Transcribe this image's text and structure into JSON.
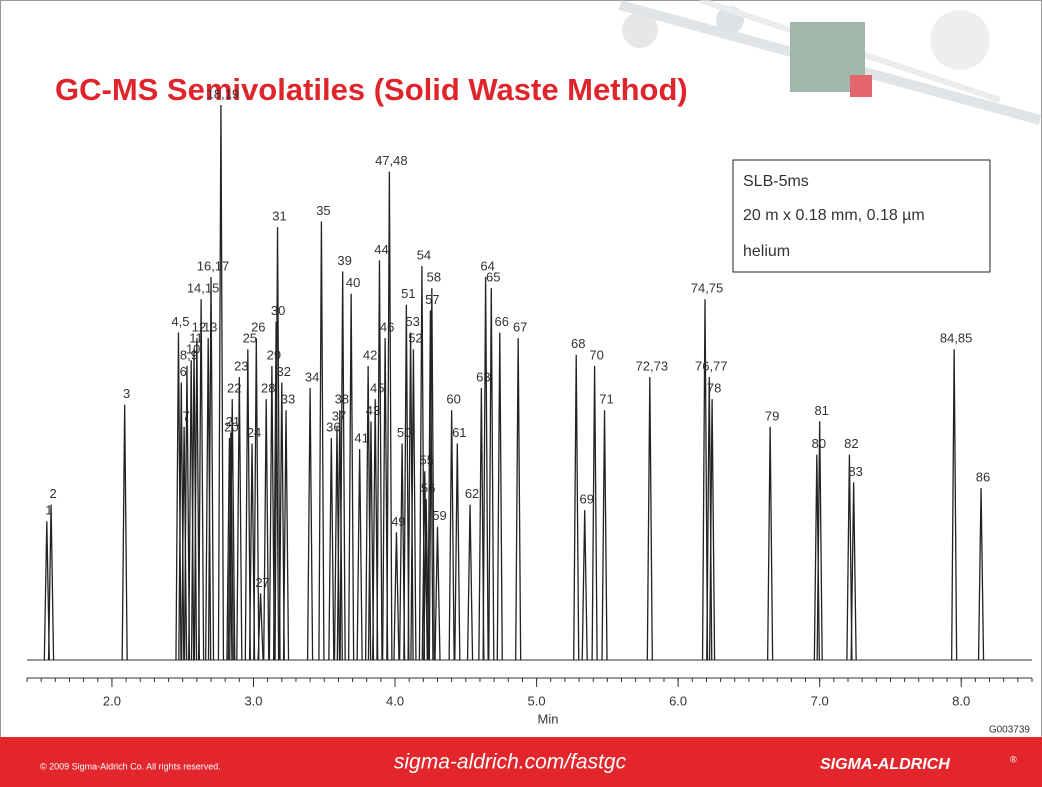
{
  "chart_data": {
    "type": "chromatogram",
    "title": "GC-MS Semivolatiles (Solid Waste Method)",
    "annotations": [
      "SLB-5ms",
      "20 m x 0.18 mm, 0.18 µm",
      "helium"
    ],
    "x_label": "Min",
    "figure_id": "G003739",
    "color": "#222222",
    "xlim": [
      1.4,
      8.5
    ],
    "xticks": [
      {
        "value": 2,
        "label": "2.0"
      },
      {
        "value": 3,
        "label": "3.0"
      },
      {
        "value": 4,
        "label": "4.0"
      },
      {
        "value": 5,
        "label": "5.0"
      },
      {
        "value": 6,
        "label": "6.0"
      },
      {
        "value": 7,
        "label": "7.0"
      },
      {
        "value": 8,
        "label": "8.0"
      }
    ],
    "categories": [
      "1",
      "2",
      "3",
      "4,5",
      "6",
      "7",
      "8,9",
      "10",
      "11",
      "12",
      "13",
      "14,15",
      "16,17",
      "18,19",
      "20",
      "21",
      "22",
      "23",
      "24",
      "25",
      "26",
      "27",
      "28",
      "29",
      "30",
      "31",
      "32",
      "33",
      "34",
      "35",
      "36",
      "37",
      "38",
      "39",
      "40",
      "41",
      "42",
      "43",
      "44",
      "45",
      "46",
      "47,48",
      "49",
      "50",
      "51",
      "52",
      "53",
      "54",
      "55",
      "56",
      "57",
      "58",
      "59",
      "60",
      "61",
      "62",
      "63",
      "64",
      "65",
      "66",
      "67",
      "68",
      "69",
      "70",
      "71",
      "72,73",
      "74,75",
      "76,77",
      "78",
      "79",
      "80",
      "81",
      "82",
      "83",
      "84,85",
      "86"
    ],
    "x": [
      1.54,
      1.57,
      2.09,
      2.47,
      2.49,
      2.51,
      2.53,
      2.56,
      2.58,
      2.6,
      2.68,
      2.63,
      2.7,
      2.77,
      2.83,
      2.84,
      2.85,
      2.9,
      2.99,
      2.96,
      3.02,
      3.05,
      3.09,
      3.13,
      3.16,
      3.17,
      3.2,
      3.23,
      3.4,
      3.48,
      3.55,
      3.59,
      3.61,
      3.63,
      3.69,
      3.75,
      3.81,
      3.83,
      3.89,
      3.86,
      3.93,
      3.96,
      4.01,
      4.05,
      4.08,
      4.13,
      4.11,
      4.19,
      4.21,
      4.22,
      4.25,
      4.26,
      4.3,
      4.4,
      4.44,
      4.53,
      4.61,
      4.64,
      4.68,
      4.74,
      4.87,
      5.28,
      5.34,
      5.41,
      5.48,
      5.8,
      6.19,
      6.22,
      6.24,
      6.65,
      6.98,
      7.0,
      7.21,
      7.24,
      7.95,
      8.14
    ],
    "values": [
      25,
      28,
      46,
      59,
      50,
      42,
      53,
      54,
      56,
      58,
      58,
      65,
      69,
      100,
      40,
      41,
      47,
      51,
      39,
      56,
      58,
      12,
      47,
      53,
      61,
      78,
      50,
      45,
      49,
      79,
      40,
      42,
      45,
      70,
      66,
      38,
      53,
      43,
      72,
      47,
      58,
      88,
      23,
      39,
      64,
      56,
      59,
      71,
      34,
      29,
      63,
      67,
      24,
      45,
      39,
      28,
      49,
      69,
      67,
      59,
      58,
      55,
      27,
      53,
      45,
      51,
      65,
      51,
      47,
      42,
      37,
      43,
      37,
      32,
      56,
      31
    ]
  },
  "footer": {
    "copyright": "© 2009 Sigma-Aldrich Co. All rights reserved.",
    "url": "sigma-aldrich.com/fastgc",
    "brand": "SIGMA-ALDRICH",
    "brand_mark": "®"
  }
}
